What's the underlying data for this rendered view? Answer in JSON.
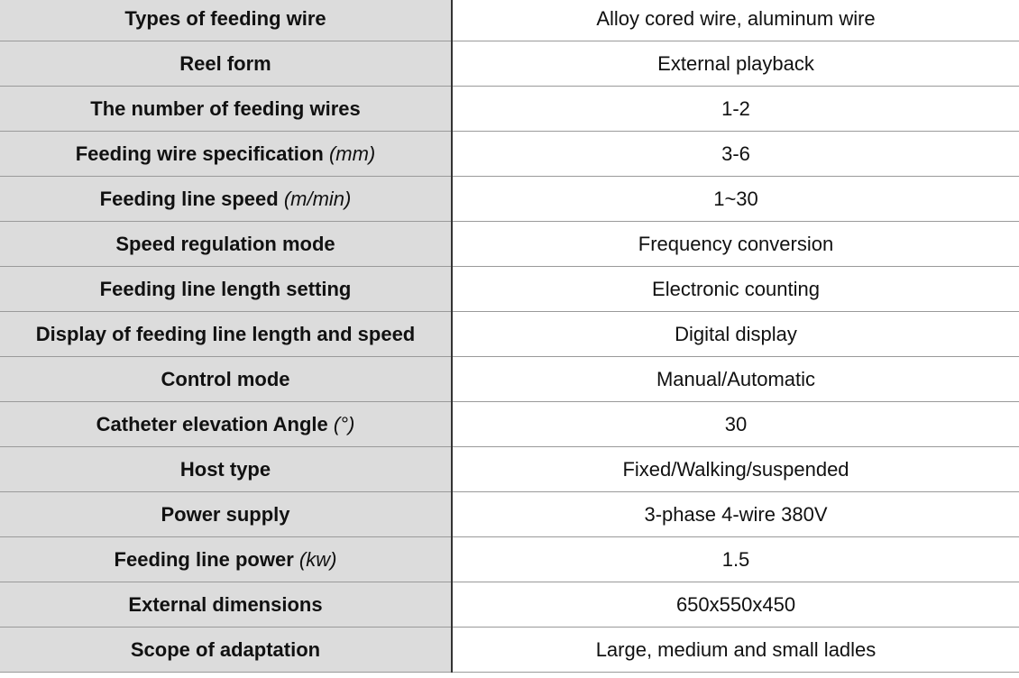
{
  "rows": [
    {
      "label": "Types of feeding wire",
      "unit": "",
      "value": "Alloy cored wire, aluminum wire"
    },
    {
      "label": "Reel form",
      "unit": "",
      "value": "External playback"
    },
    {
      "label": "The number of feeding wires",
      "unit": "",
      "value": "1-2"
    },
    {
      "label": "Feeding wire specification",
      "unit": "(mm)",
      "value": "3-6"
    },
    {
      "label": "Feeding line speed",
      "unit": "(m/min)",
      "value": "1~30"
    },
    {
      "label": "Speed regulation mode",
      "unit": "",
      "value": "Frequency conversion"
    },
    {
      "label": "Feeding line length setting",
      "unit": "",
      "value": "Electronic counting"
    },
    {
      "label": "Display of feeding line length and speed",
      "unit": "",
      "value": "Digital display"
    },
    {
      "label": "Control mode",
      "unit": "",
      "value": "Manual/Automatic"
    },
    {
      "label": "Catheter elevation Angle",
      "unit": "(°)",
      "value": "30"
    },
    {
      "label": "Host type",
      "unit": "",
      "value": "Fixed/Walking/suspended"
    },
    {
      "label": "Power supply",
      "unit": "",
      "value": "3-phase 4-wire 380V"
    },
    {
      "label": "Feeding line power",
      "unit": "(kw)",
      "value": "1.5"
    },
    {
      "label": "External dimensions",
      "unit": "",
      "value": "650x550x450"
    },
    {
      "label": "Scope of adaptation",
      "unit": "",
      "value": "Large, medium and small ladles"
    }
  ]
}
